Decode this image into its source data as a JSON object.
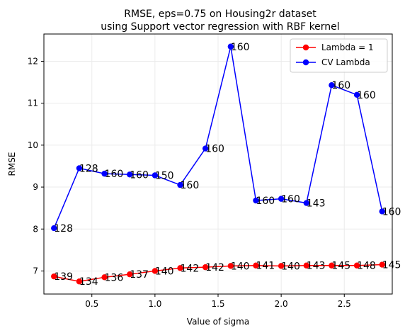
{
  "chart_data": {
    "type": "line",
    "title": "RMSE, eps=0.75 on Housing2r dataset",
    "subtitle": "using Support vector regression with RBF kernel",
    "xlabel": "Value of sigma",
    "ylabel": "RMSE",
    "xlim": [
      0.12,
      2.88
    ],
    "ylim": [
      6.45,
      12.65
    ],
    "xticks": [
      0.5,
      1.0,
      1.5,
      2.0,
      2.5
    ],
    "xtick_labels": [
      "0.5",
      "1.0",
      "1.5",
      "2.0",
      "2.5"
    ],
    "yticks": [
      7,
      8,
      9,
      10,
      11,
      12
    ],
    "ytick_labels": [
      "7",
      "8",
      "9",
      "10",
      "11",
      "12"
    ],
    "grid": true,
    "legend_position": "top-right",
    "x": [
      0.2,
      0.4,
      0.6,
      0.8,
      1.0,
      1.2,
      1.4,
      1.6,
      1.8,
      2.0,
      2.2,
      2.4,
      2.6,
      2.8
    ],
    "series": [
      {
        "name": "Lambda = 1",
        "color": "#ff0000",
        "values": [
          6.87,
          6.75,
          6.85,
          6.92,
          7.0,
          7.07,
          7.09,
          7.12,
          7.13,
          7.12,
          7.13,
          7.13,
          7.13,
          7.15
        ],
        "point_labels": [
          "139",
          "134",
          "136",
          "137",
          "140",
          "142",
          "142",
          "140",
          "141",
          "140",
          "143",
          "145",
          "148",
          "145"
        ]
      },
      {
        "name": "CV Lambda",
        "color": "#0000ff",
        "values": [
          8.02,
          9.45,
          9.32,
          9.3,
          9.28,
          9.05,
          9.92,
          12.35,
          8.68,
          8.72,
          8.62,
          11.43,
          11.2,
          8.42
        ],
        "point_labels": [
          "128",
          "128",
          "160",
          "160",
          "150",
          "160",
          "160",
          "160",
          "160",
          "160",
          "143",
          "160",
          "160",
          "160"
        ]
      }
    ]
  }
}
